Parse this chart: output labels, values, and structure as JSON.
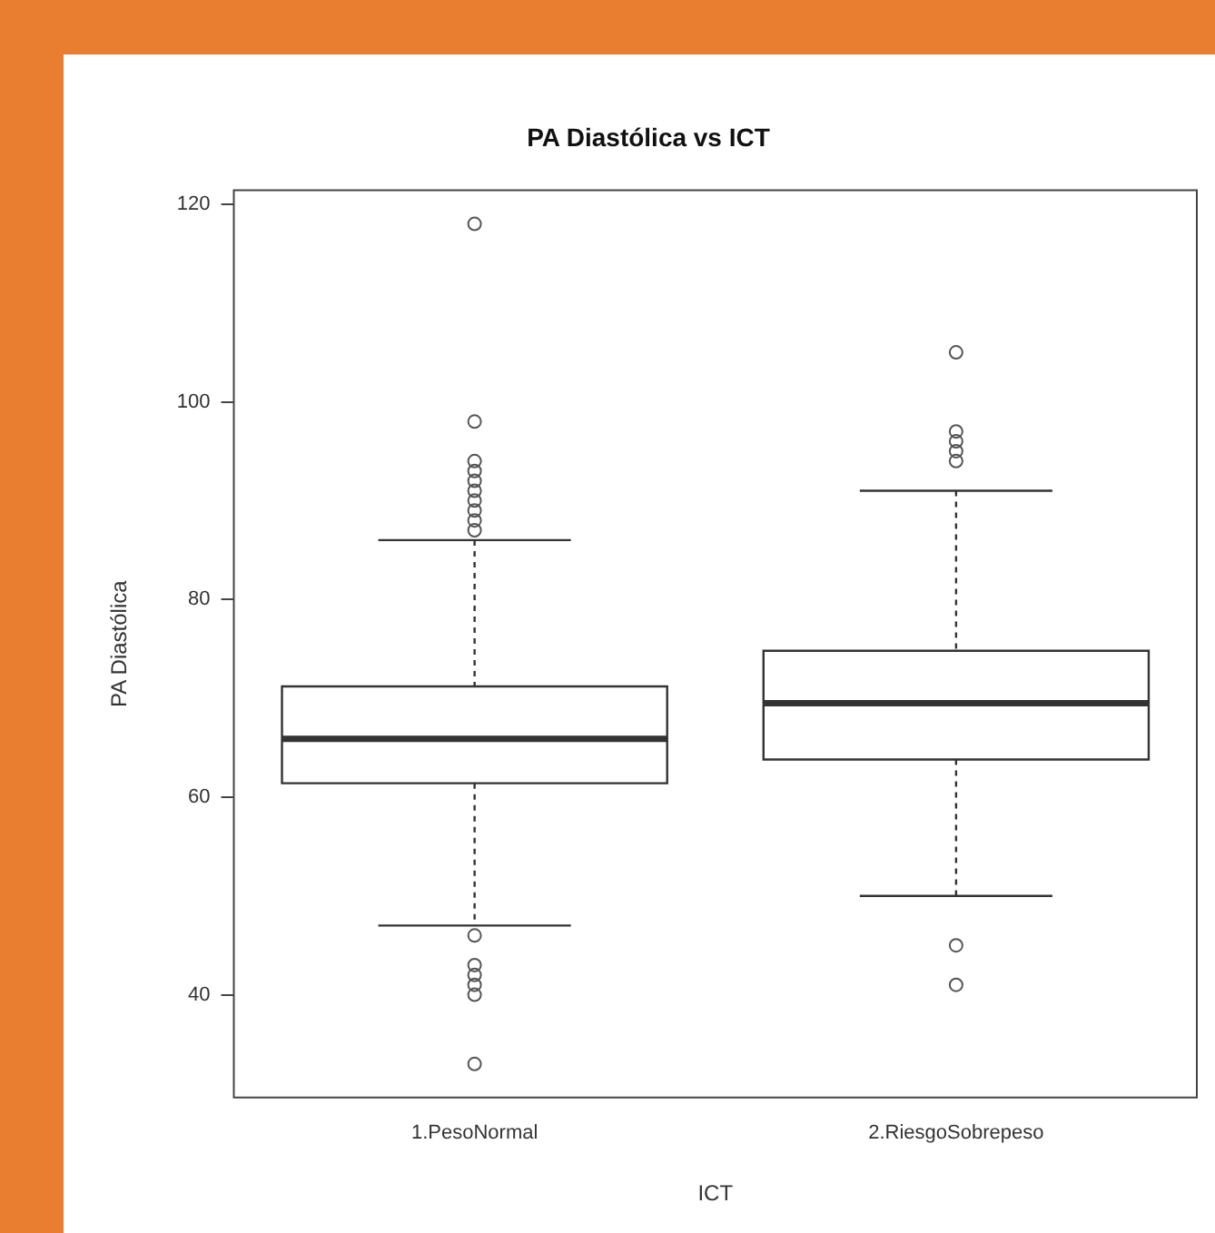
{
  "chart_data": {
    "type": "box",
    "title": "PA Diastólica vs ICT",
    "xlabel": "ICT",
    "ylabel": "PA Diastólica",
    "categories": [
      "1.PesoNormal",
      "2.RiesgoSobrepeso"
    ],
    "boxes": [
      {
        "low": 47,
        "q1": 61.4,
        "median": 65.9,
        "q3": 71.2,
        "high": 86,
        "outliers": [
          118,
          98,
          94,
          93,
          92,
          91,
          90,
          89,
          88,
          87,
          46,
          43,
          42,
          41,
          40,
          33
        ]
      },
      {
        "low": 50,
        "q1": 63.8,
        "median": 69.5,
        "q3": 74.8,
        "high": 91,
        "outliers": [
          105,
          97,
          96,
          95,
          94,
          45,
          41
        ]
      }
    ],
    "color": "#ffffff",
    "ylim": [
      29.6,
      121.4
    ],
    "yticks": [
      40,
      60,
      80,
      100,
      120
    ],
    "grid": false,
    "legend": false,
    "marker": "circle"
  }
}
